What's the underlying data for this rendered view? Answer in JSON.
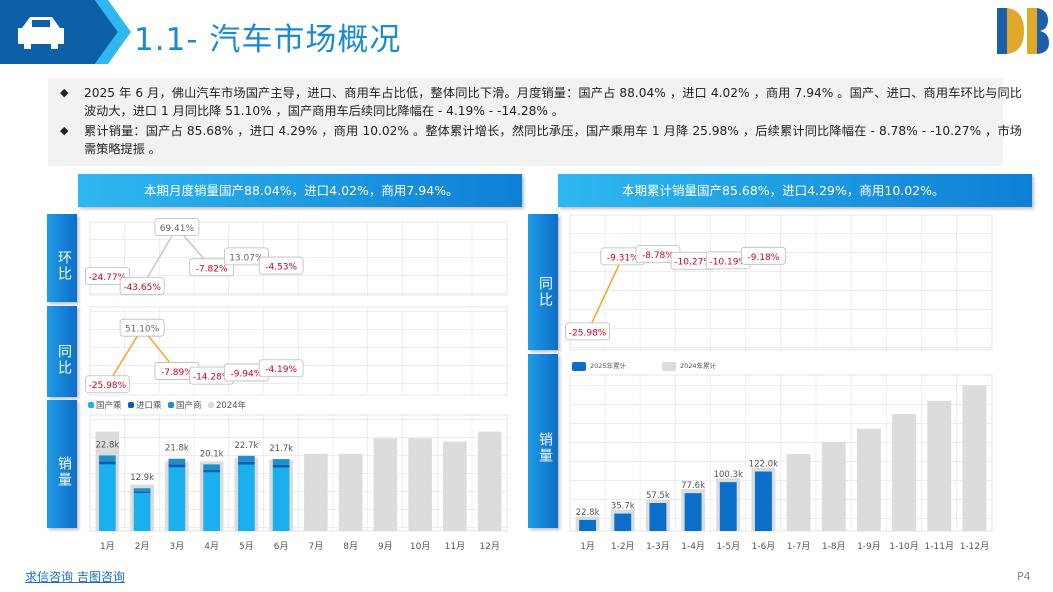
{
  "header": {
    "title": "1.1- 汽车市场概况"
  },
  "bullets": [
    "2025 年 6 月，佛山汽车市场国产主导，进口、商用车占比低，整体同比下滑。月度销量：国产占 88.04% ，进口 4.02% ，商用 7.94% 。国产、进口、商用车环比与同比波动大，进口 1 月同比降 51.10% ，国产商用车后续同比降幅在 - 4.19% - -14.28% 。",
    "累计销量：国产占 85.68% ，进口 4.29% ，商用 10.02% 。整体累计增长，然同比承压，国产乘用车 1 月降 25.98% ，后续累计同比降幅在 - 8.78% - -10.27% ，市场需策略提振 。"
  ],
  "panels": [
    {
      "banner": "本期月度销量国产88.04%，进口4.02%，商用7.94%。"
    },
    {
      "banner": "本期累计销量国产85.68%，进口4.29%，商用10.02%。"
    }
  ],
  "chart_data": [
    {
      "type": "line",
      "side_label": "环比",
      "color": "#c8c8c8",
      "ylim": [
        -60,
        80
      ],
      "values": [
        -24.77,
        -43.65,
        69.41,
        -7.82,
        13.07,
        -4.53
      ],
      "value_labels": [
        "-24.77%",
        "-43.65%",
        "69.41%",
        "-7.82%",
        "13.07%",
        "-4.53%"
      ]
    },
    {
      "type": "line",
      "side_label": "同比",
      "color": "#f5a623",
      "ylim": [
        -40,
        80
      ],
      "values": [
        -25.98,
        51.1,
        -7.89,
        -14.28,
        -9.94,
        -4.19
      ],
      "value_labels": [
        "-25.98%",
        "51.10%",
        "-7.89%",
        "-14.28%",
        "-9.94%",
        "-4.19%"
      ]
    },
    {
      "type": "bar",
      "side_label": "销量",
      "ylim": [
        0,
        35000
      ],
      "categories": [
        "1月",
        "2月",
        "3月",
        "4月",
        "5月",
        "6月",
        "7月",
        "8月",
        "9月",
        "10月",
        "11月",
        "12月"
      ],
      "series": [
        {
          "name": "国产乘",
          "color": "#1ab0ef",
          "stack": true,
          "values": [
            20100,
            11400,
            19200,
            17700,
            20000,
            19100,
            null,
            null,
            null,
            null,
            null,
            null
          ]
        },
        {
          "name": "进口乘",
          "color": "#0b5fb3",
          "stack": true,
          "values": [
            900,
            500,
            900,
            800,
            900,
            900,
            null,
            null,
            null,
            null,
            null,
            null
          ]
        },
        {
          "name": "国产商",
          "color": "#1e8fc8",
          "stack": true,
          "values": [
            1800,
            1000,
            1700,
            1600,
            1800,
            1700,
            null,
            null,
            null,
            null,
            null,
            null
          ]
        },
        {
          "name": "2024年",
          "color": "#dcdcdc",
          "stack": false,
          "values": [
            30000,
            14000,
            21000,
            21000,
            22000,
            21500,
            23300,
            23300,
            28000,
            28000,
            27000,
            30000
          ]
        }
      ],
      "totals": {
        "values": [
          22800,
          12900,
          21800,
          20100,
          22700,
          21700
        ],
        "value_labels": [
          "22.8k",
          "12.9k",
          "21.8k",
          "20.1k",
          "22.7k",
          "21.7k"
        ]
      }
    },
    {
      "type": "line",
      "side_label": "同比",
      "color": "#f5a623",
      "ylim": [
        -30,
        0
      ],
      "values": [
        -25.98,
        -9.31,
        -8.78,
        -10.27,
        -10.19,
        -9.18
      ],
      "value_labels": [
        "-25.98%",
        "-9.31%",
        "-8.78%",
        "-10.27%",
        "-10.19%",
        "-9.18%"
      ]
    },
    {
      "type": "bar",
      "side_label": "销量",
      "ylim": [
        0,
        320000
      ],
      "categories": [
        "1月",
        "1-2月",
        "1-3月",
        "1-4月",
        "1-5月",
        "1-6月",
        "1-7月",
        "1-8月",
        "1-9月",
        "1-10月",
        "1-11月",
        "1-12月"
      ],
      "series": [
        {
          "name": "2025年累计",
          "color": "#0b6fc9",
          "stack": true,
          "values": [
            22800,
            35700,
            57500,
            77600,
            100300,
            122000,
            null,
            null,
            null,
            null,
            null,
            null
          ],
          "value_labels": [
            "22.8k",
            "35.7k",
            "57.5k",
            "77.6k",
            "100.3k",
            "122.0k",
            null,
            null,
            null,
            null,
            null,
            null
          ]
        },
        {
          "name": "2024年累计",
          "color": "#dcdcdc",
          "stack": false,
          "values": [
            30000,
            44000,
            65000,
            86000,
            108000,
            130000,
            158000,
            183000,
            210000,
            240000,
            267000,
            299000
          ]
        }
      ]
    }
  ]
}
